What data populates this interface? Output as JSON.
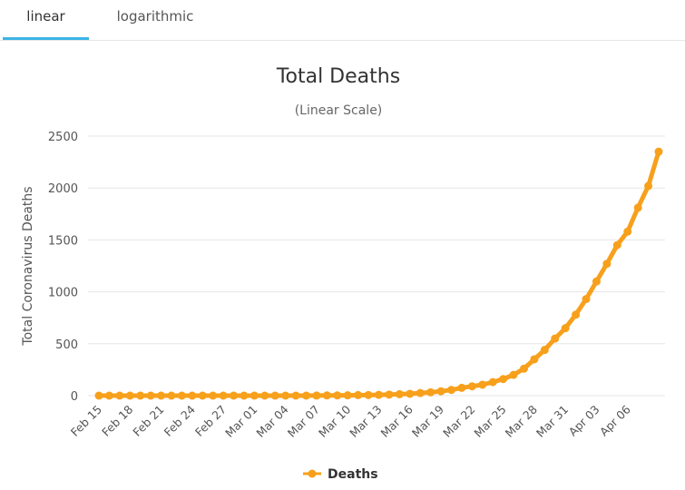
{
  "tabs": [
    {
      "label": "linear",
      "active": true
    },
    {
      "label": "logarithmic",
      "active": false
    }
  ],
  "colors": {
    "series": "#f7a01c",
    "accent": "#3cb4e5",
    "grid": "#e6e6e6"
  },
  "chart_data": {
    "type": "line",
    "title": "Total Deaths",
    "subtitle": "(Linear Scale)",
    "ylabel": "Total Coronavirus Deaths",
    "xlabel": "",
    "ylim": [
      0,
      2500
    ],
    "yticks": [
      0,
      500,
      1000,
      1500,
      2000,
      2500
    ],
    "grid": true,
    "legend": "bottom-center",
    "xtick_labels": [
      "Feb 15",
      "Feb 18",
      "Feb 21",
      "Feb 24",
      "Feb 27",
      "Mar 01",
      "Mar 04",
      "Mar 07",
      "Mar 10",
      "Mar 13",
      "Mar 16",
      "Mar 19",
      "Mar 22",
      "Mar 25",
      "Mar 28",
      "Mar 31",
      "Apr 03",
      "Apr 06"
    ],
    "x": [
      "Feb 15",
      "Feb 16",
      "Feb 17",
      "Feb 18",
      "Feb 19",
      "Feb 20",
      "Feb 21",
      "Feb 22",
      "Feb 23",
      "Feb 24",
      "Feb 25",
      "Feb 26",
      "Feb 27",
      "Feb 28",
      "Feb 29",
      "Mar 01",
      "Mar 02",
      "Mar 03",
      "Mar 04",
      "Mar 05",
      "Mar 06",
      "Mar 07",
      "Mar 08",
      "Mar 09",
      "Mar 10",
      "Mar 11",
      "Mar 12",
      "Mar 13",
      "Mar 14",
      "Mar 15",
      "Mar 16",
      "Mar 17",
      "Mar 18",
      "Mar 19",
      "Mar 20",
      "Mar 21",
      "Mar 22",
      "Mar 23",
      "Mar 24",
      "Mar 25",
      "Mar 26",
      "Mar 27",
      "Mar 28",
      "Mar 29",
      "Mar 30",
      "Mar 31",
      "Apr 01",
      "Apr 02",
      "Apr 03",
      "Apr 04",
      "Apr 05",
      "Apr 06",
      "Apr 07",
      "Apr 08",
      "Apr 09"
    ],
    "series": [
      {
        "name": "Deaths",
        "values": [
          0,
          0,
          0,
          0,
          0,
          0,
          0,
          0,
          0,
          0,
          0,
          0,
          0,
          0,
          0,
          0,
          0,
          0,
          0,
          0,
          0,
          1,
          2,
          2,
          3,
          5,
          6,
          8,
          10,
          14,
          18,
          25,
          32,
          42,
          55,
          75,
          90,
          105,
          130,
          160,
          200,
          260,
          350,
          440,
          550,
          650,
          780,
          930,
          1100,
          1270,
          1450,
          1580,
          1810,
          2020,
          2350
        ]
      }
    ]
  },
  "legend": {
    "label": "Deaths"
  }
}
